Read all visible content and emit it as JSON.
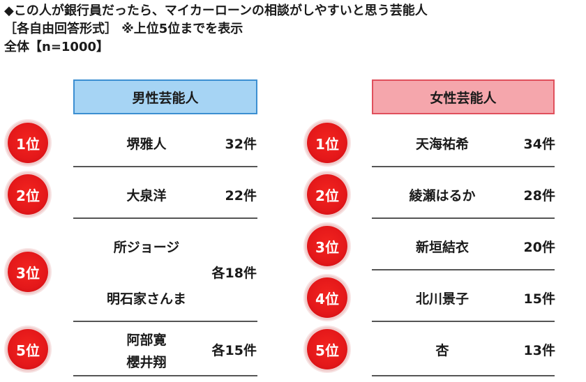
{
  "header": {
    "title": "◆この人が銀行員だったら、マイカーローンの相談がしやすいと思う芸能人",
    "subtitle": "［各自由回答形式］ ※上位5位までを表示",
    "sample": "全体【n=1000】"
  },
  "male": {
    "title": "男性芸能人",
    "entries": [
      {
        "rank": "1位",
        "names": [
          "堺雅人"
        ],
        "count": "32件"
      },
      {
        "rank": "2位",
        "names": [
          "大泉洋"
        ],
        "count": "22件"
      },
      {
        "rank": "3位",
        "names": [
          "所ジョージ",
          "明石家さんま"
        ],
        "count": "各18件"
      },
      {
        "rank": "5位",
        "names": [
          "阿部寛",
          "櫻井翔"
        ],
        "count": "各15件"
      }
    ]
  },
  "female": {
    "title": "女性芸能人",
    "entries": [
      {
        "rank": "1位",
        "names": [
          "天海祐希"
        ],
        "count": "34件"
      },
      {
        "rank": "2位",
        "names": [
          "綾瀬はるか"
        ],
        "count": "28件"
      },
      {
        "rank": "3位",
        "names": [
          "新垣結衣"
        ],
        "count": "20件"
      },
      {
        "rank": "4位",
        "names": [
          "北川景子"
        ],
        "count": "15件"
      },
      {
        "rank": "5位",
        "names": [
          "杏"
        ],
        "count": "13件"
      }
    ]
  },
  "colors": {
    "male_box": "#a6d4f4",
    "female_box": "#f5a6ac",
    "badge": "#e4181a"
  }
}
